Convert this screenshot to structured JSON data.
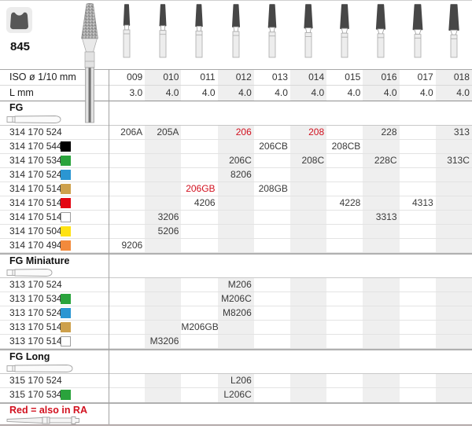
{
  "title": {
    "series": "845"
  },
  "columns": [
    "009",
    "010",
    "011",
    "012",
    "013",
    "014",
    "015",
    "016",
    "017",
    "018"
  ],
  "rows_meta": {
    "iso_label": "ISO ø 1/10 mm",
    "l_label": "L mm"
  },
  "l_values": [
    "3.0",
    "4.0",
    "4.0",
    "4.0",
    "4.0",
    "4.0",
    "4.0",
    "4.0",
    "4.0",
    "4.0"
  ],
  "colors": {
    "black": "#000000",
    "green": "#2aa33c",
    "blue": "#2b96d2",
    "gold": "#cda04c",
    "red": "#e30613",
    "white": "#ffffff",
    "yellow": "#ffe212",
    "orange": "#f28a3c",
    "red_text": "#d2101e",
    "band": "#efefef"
  },
  "sections": [
    {
      "label": "FG",
      "icon": "fg-bur-outline-icon",
      "rows": [
        {
          "code": "314 170 524",
          "square": null,
          "cells": [
            {
              "col": 0,
              "text": "206A"
            },
            {
              "col": 1,
              "text": "205A"
            },
            {
              "col": 3,
              "text": "206",
              "red": true
            },
            {
              "col": 5,
              "text": "208",
              "red": true
            },
            {
              "col": 7,
              "text": "228"
            },
            {
              "col": 9,
              "text": "313"
            }
          ]
        },
        {
          "code": "314 170 544",
          "square": "black",
          "cells": [
            {
              "col": 4,
              "text": "206CB"
            },
            {
              "col": 6,
              "text": "208CB"
            }
          ]
        },
        {
          "code": "314 170 534",
          "square": "green",
          "cells": [
            {
              "col": 3,
              "text": "206C"
            },
            {
              "col": 5,
              "text": "208C"
            },
            {
              "col": 7,
              "text": "228C"
            },
            {
              "col": 9,
              "text": "313C"
            }
          ]
        },
        {
          "code": "314 170 524",
          "square": "blue",
          "cells": [
            {
              "col": 3,
              "text": "8206"
            }
          ]
        },
        {
          "code": "314 170 514",
          "square": "gold",
          "cells": [
            {
              "col": 2,
              "text": "206GB",
              "red": true
            },
            {
              "col": 4,
              "text": "208GB"
            }
          ]
        },
        {
          "code": "314 170 514",
          "square": "red",
          "cells": [
            {
              "col": 2,
              "text": "4206"
            },
            {
              "col": 6,
              "text": "4228"
            },
            {
              "col": 8,
              "text": "4313"
            }
          ]
        },
        {
          "code": "314 170 514",
          "square": "white",
          "cells": [
            {
              "col": 1,
              "text": "3206"
            },
            {
              "col": 7,
              "text": "3313"
            }
          ]
        },
        {
          "code": "314 170 504",
          "square": "yellow",
          "cells": [
            {
              "col": 1,
              "text": "5206"
            }
          ]
        },
        {
          "code": "314 170 494",
          "square": "orange",
          "cells": [
            {
              "col": 0,
              "text": "9206"
            }
          ]
        }
      ]
    },
    {
      "label": "FG Miniature",
      "icon": "fg-miniature-bur-outline-icon",
      "rows": [
        {
          "code": "313 170 524",
          "square": null,
          "cells": [
            {
              "col": 3,
              "text": "M206"
            }
          ]
        },
        {
          "code": "313 170 534",
          "square": "green",
          "cells": [
            {
              "col": 3,
              "text": "M206C"
            }
          ]
        },
        {
          "code": "313 170 524",
          "square": "blue",
          "cells": [
            {
              "col": 3,
              "text": "M8206"
            }
          ]
        },
        {
          "code": "313 170 514",
          "square": "gold",
          "cells": [
            {
              "col": 2,
              "text": "M206GB"
            }
          ]
        },
        {
          "code": "313 170 514",
          "square": "white",
          "cells": [
            {
              "col": 1,
              "text": "M3206"
            }
          ]
        }
      ]
    },
    {
      "label": "FG Long",
      "icon": "fg-long-bur-outline-icon",
      "rows": [
        {
          "code": "315 170 524",
          "square": null,
          "cells": [
            {
              "col": 3,
              "text": "L206"
            }
          ]
        },
        {
          "code": "315 170 534",
          "square": "green",
          "cells": [
            {
              "col": 3,
              "text": "L206C"
            }
          ]
        }
      ]
    }
  ],
  "footnote": {
    "text": "Red = also in RA",
    "icon": "ra-bur-outline-icon"
  }
}
